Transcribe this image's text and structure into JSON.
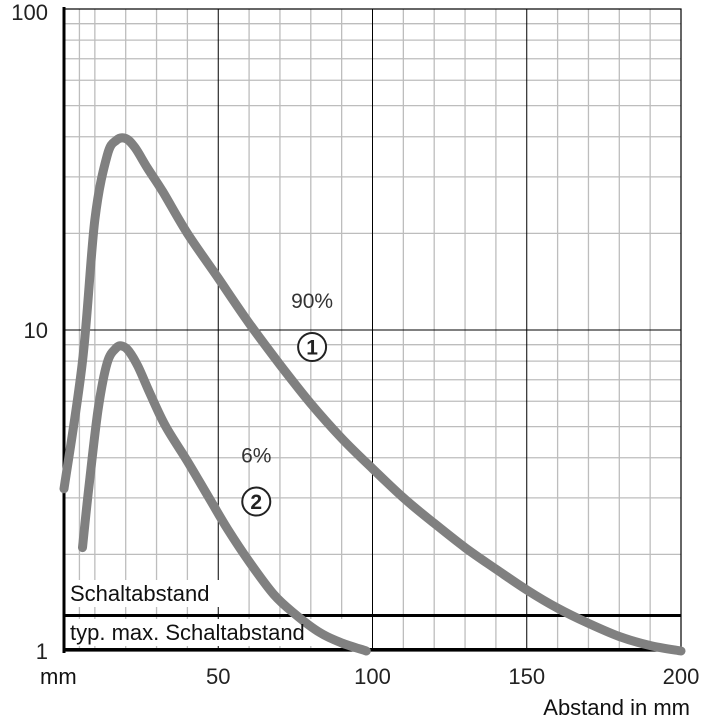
{
  "chart_data": {
    "type": "line",
    "title": "",
    "xlabel": "Abstand in mm",
    "xunit_label": "mm",
    "ylabel": "",
    "xlim": [
      0,
      200
    ],
    "ylim": [
      1,
      100
    ],
    "yscale": "log",
    "grid": true,
    "x_ticks": [
      "50",
      "100",
      "150",
      "200"
    ],
    "x_tick_values": [
      50,
      100,
      150,
      200
    ],
    "y_ticks": [
      "1",
      "10",
      "100"
    ],
    "y_tick_values": [
      1,
      10,
      100
    ],
    "series": [
      {
        "name": "90%",
        "marker": "1",
        "label_pos": [
          60,
          10
        ],
        "x": [
          0,
          6,
          10,
          14,
          17,
          20,
          23,
          27,
          32,
          40,
          50,
          60,
          70,
          80,
          90,
          100,
          110,
          120,
          130,
          140,
          150,
          160,
          170,
          180,
          190,
          200
        ],
        "y": [
          3.2,
          8,
          22,
          35,
          39,
          39.5,
          37,
          32,
          27,
          20,
          14.5,
          10.5,
          7.8,
          5.9,
          4.6,
          3.7,
          3.0,
          2.5,
          2.1,
          1.8,
          1.55,
          1.36,
          1.22,
          1.11,
          1.04,
          1.0
        ]
      },
      {
        "name": "6%",
        "marker": "2",
        "label_pos": [
          62,
          3.3
        ],
        "x": [
          6,
          8,
          11,
          14,
          17,
          19,
          21,
          24,
          28,
          33,
          40,
          47,
          53,
          60,
          68,
          75,
          83,
          90,
          98
        ],
        "y": [
          2.1,
          3.2,
          5.6,
          7.9,
          8.8,
          8.9,
          8.6,
          7.7,
          6.3,
          5.0,
          3.9,
          3.0,
          2.4,
          1.9,
          1.5,
          1.3,
          1.14,
          1.06,
          1.0
        ]
      }
    ],
    "reference_lines": [
      {
        "name": "Schaltabstand",
        "y": 1.29
      },
      {
        "name": "typ. max. Schaltabstand",
        "y": 1.0
      }
    ]
  },
  "colors": {
    "curve": "#808080",
    "grid_minor": "#bdbdbd",
    "grid_major": "#000000",
    "axis": "#000000",
    "ref_line": "#000000"
  }
}
